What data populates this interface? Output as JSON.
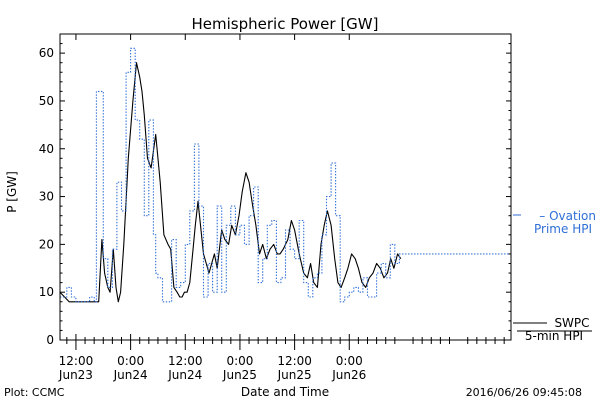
{
  "chart_data": {
    "type": "line",
    "title": "Hemispheric Power [GW]",
    "xlabel": "Date and Time",
    "ylabel": "P [GW]",
    "x_unit": "hours",
    "xlim": [
      8.5,
      107.5
    ],
    "ylim": [
      0,
      64
    ],
    "y_ticks": [
      0,
      10,
      20,
      30,
      40,
      50,
      60
    ],
    "x_ticks": [
      {
        "x": 12,
        "time": "12:00",
        "date": "Jun23"
      },
      {
        "x": 24,
        "time": "0:00",
        "date": "Jun24"
      },
      {
        "x": 36,
        "time": "12:00",
        "date": "Jun24"
      },
      {
        "x": 48,
        "time": "0:00",
        "date": "Jun25"
      },
      {
        "x": 60,
        "time": "12:00",
        "date": "Jun25"
      },
      {
        "x": 72,
        "time": "0:00",
        "date": "Jun26"
      }
    ],
    "grid": false,
    "legend_placement": "right",
    "series": [
      {
        "name": "SWPC 5-min HPI",
        "color": "#000000",
        "style": "solid",
        "x": [
          8.5,
          9.5,
          10.5,
          12.0,
          14.0,
          15.5,
          17.0,
          17.7,
          18.3,
          19.0,
          19.5,
          20.2,
          20.8,
          21.3,
          21.8,
          22.5,
          23.5,
          24.5,
          25.3,
          26.0,
          26.5,
          27.0,
          27.7,
          28.5,
          29.5,
          30.5,
          31.3,
          32.2,
          32.8,
          33.5,
          34.2,
          34.8,
          35.3,
          35.8,
          36.4,
          37.0,
          37.6,
          38.2,
          38.8,
          40.0,
          41.2,
          41.8,
          42.4,
          43.0,
          43.5,
          44.0,
          44.7,
          45.5,
          46.2,
          47.0,
          47.8,
          48.5,
          49.3,
          50.0,
          50.8,
          51.5,
          52.3,
          53.0,
          53.8,
          54.6,
          55.4,
          56.2,
          56.8,
          57.5,
          58.5,
          59.3,
          60.0,
          61.0,
          62.0,
          62.8,
          63.5,
          64.2,
          65.0,
          65.8,
          66.5,
          67.2,
          68.0,
          68.8,
          69.5,
          70.2,
          71.0,
          71.7,
          72.5,
          73.3,
          74.0,
          74.8,
          75.6,
          76.4,
          77.2,
          78.0,
          78.8,
          79.6,
          80.4,
          81.1,
          81.8,
          82.6,
          83.3
        ],
        "values": [
          10,
          9,
          8,
          8,
          8,
          8,
          8,
          21,
          14,
          11,
          10,
          19,
          11,
          8,
          10,
          20,
          38,
          50,
          58,
          55,
          52,
          47,
          38,
          36,
          43,
          33,
          22,
          20,
          19,
          11,
          10,
          9,
          9,
          10,
          10,
          12,
          18,
          24,
          29,
          18,
          14,
          16,
          18,
          15,
          19,
          23,
          21,
          20,
          24,
          22,
          26,
          31,
          35,
          33,
          28,
          24,
          18,
          20,
          17,
          19,
          20,
          18,
          18,
          19,
          21,
          25,
          23,
          18,
          14,
          13,
          16,
          12,
          11,
          20,
          24,
          27,
          24,
          17,
          12,
          11,
          13,
          15,
          18,
          17,
          15,
          12,
          11,
          13,
          14,
          16,
          15,
          13,
          14,
          17,
          15,
          18,
          17
        ]
      },
      {
        "name": "Ovation Prime HPI",
        "color": "#2f6fd6",
        "style": "dotted-step",
        "x": [
          8.5,
          9.0,
          10.0,
          11.0,
          12.0,
          13.0,
          14.0,
          15.0,
          16.0,
          16.5,
          17.0,
          18.0,
          19.0,
          20.0,
          21.0,
          22.0,
          23.0,
          24.0,
          25.0,
          25.5,
          26.0,
          27.0,
          28.0,
          29.0,
          29.5,
          30.0,
          31.0,
          32.0,
          33.0,
          34.0,
          35.0,
          36.0,
          37.0,
          38.0,
          39.0,
          40.0,
          41.0,
          42.0,
          43.0,
          44.0,
          45.0,
          46.0,
          47.0,
          48.0,
          49.0,
          50.0,
          51.0,
          52.0,
          53.0,
          54.0,
          55.0,
          56.0,
          57.0,
          58.0,
          59.0,
          60.0,
          61.0,
          62.0,
          63.0,
          64.0,
          65.0,
          66.0,
          67.0,
          68.0,
          69.0,
          70.0,
          71.0,
          72.0,
          73.0,
          74.0,
          75.0,
          76.0,
          77.0,
          78.0,
          79.0,
          80.0,
          81.0,
          82.0,
          83.0
        ],
        "values": [
          9,
          9,
          11,
          9,
          8,
          8,
          8,
          9,
          8,
          52,
          52,
          17,
          11,
          19,
          33,
          27,
          56,
          61,
          46,
          46,
          42,
          26,
          46,
          22,
          14,
          13,
          8,
          8,
          21,
          11,
          12,
          20,
          27,
          41,
          28,
          9,
          16,
          10,
          28,
          10,
          24,
          28,
          22,
          24,
          20,
          26,
          32,
          12,
          17,
          24,
          25,
          12,
          13,
          23,
          19,
          17,
          25,
          12,
          9,
          13,
          14,
          22,
          30,
          37,
          26,
          8,
          9,
          10,
          11,
          10,
          13,
          9,
          9,
          14,
          16,
          13,
          20,
          16,
          18
        ]
      }
    ],
    "legend": [
      {
        "line1": "– Ovation",
        "line2": "Prime HPI",
        "color": "#2f6fd6"
      },
      {
        "line1": "SWPC",
        "line2": "5-min HPI",
        "color": "#000000"
      }
    ],
    "footer_left": "Plot: CCMC",
    "footer_right": "2016/06/26 09:45:08"
  }
}
